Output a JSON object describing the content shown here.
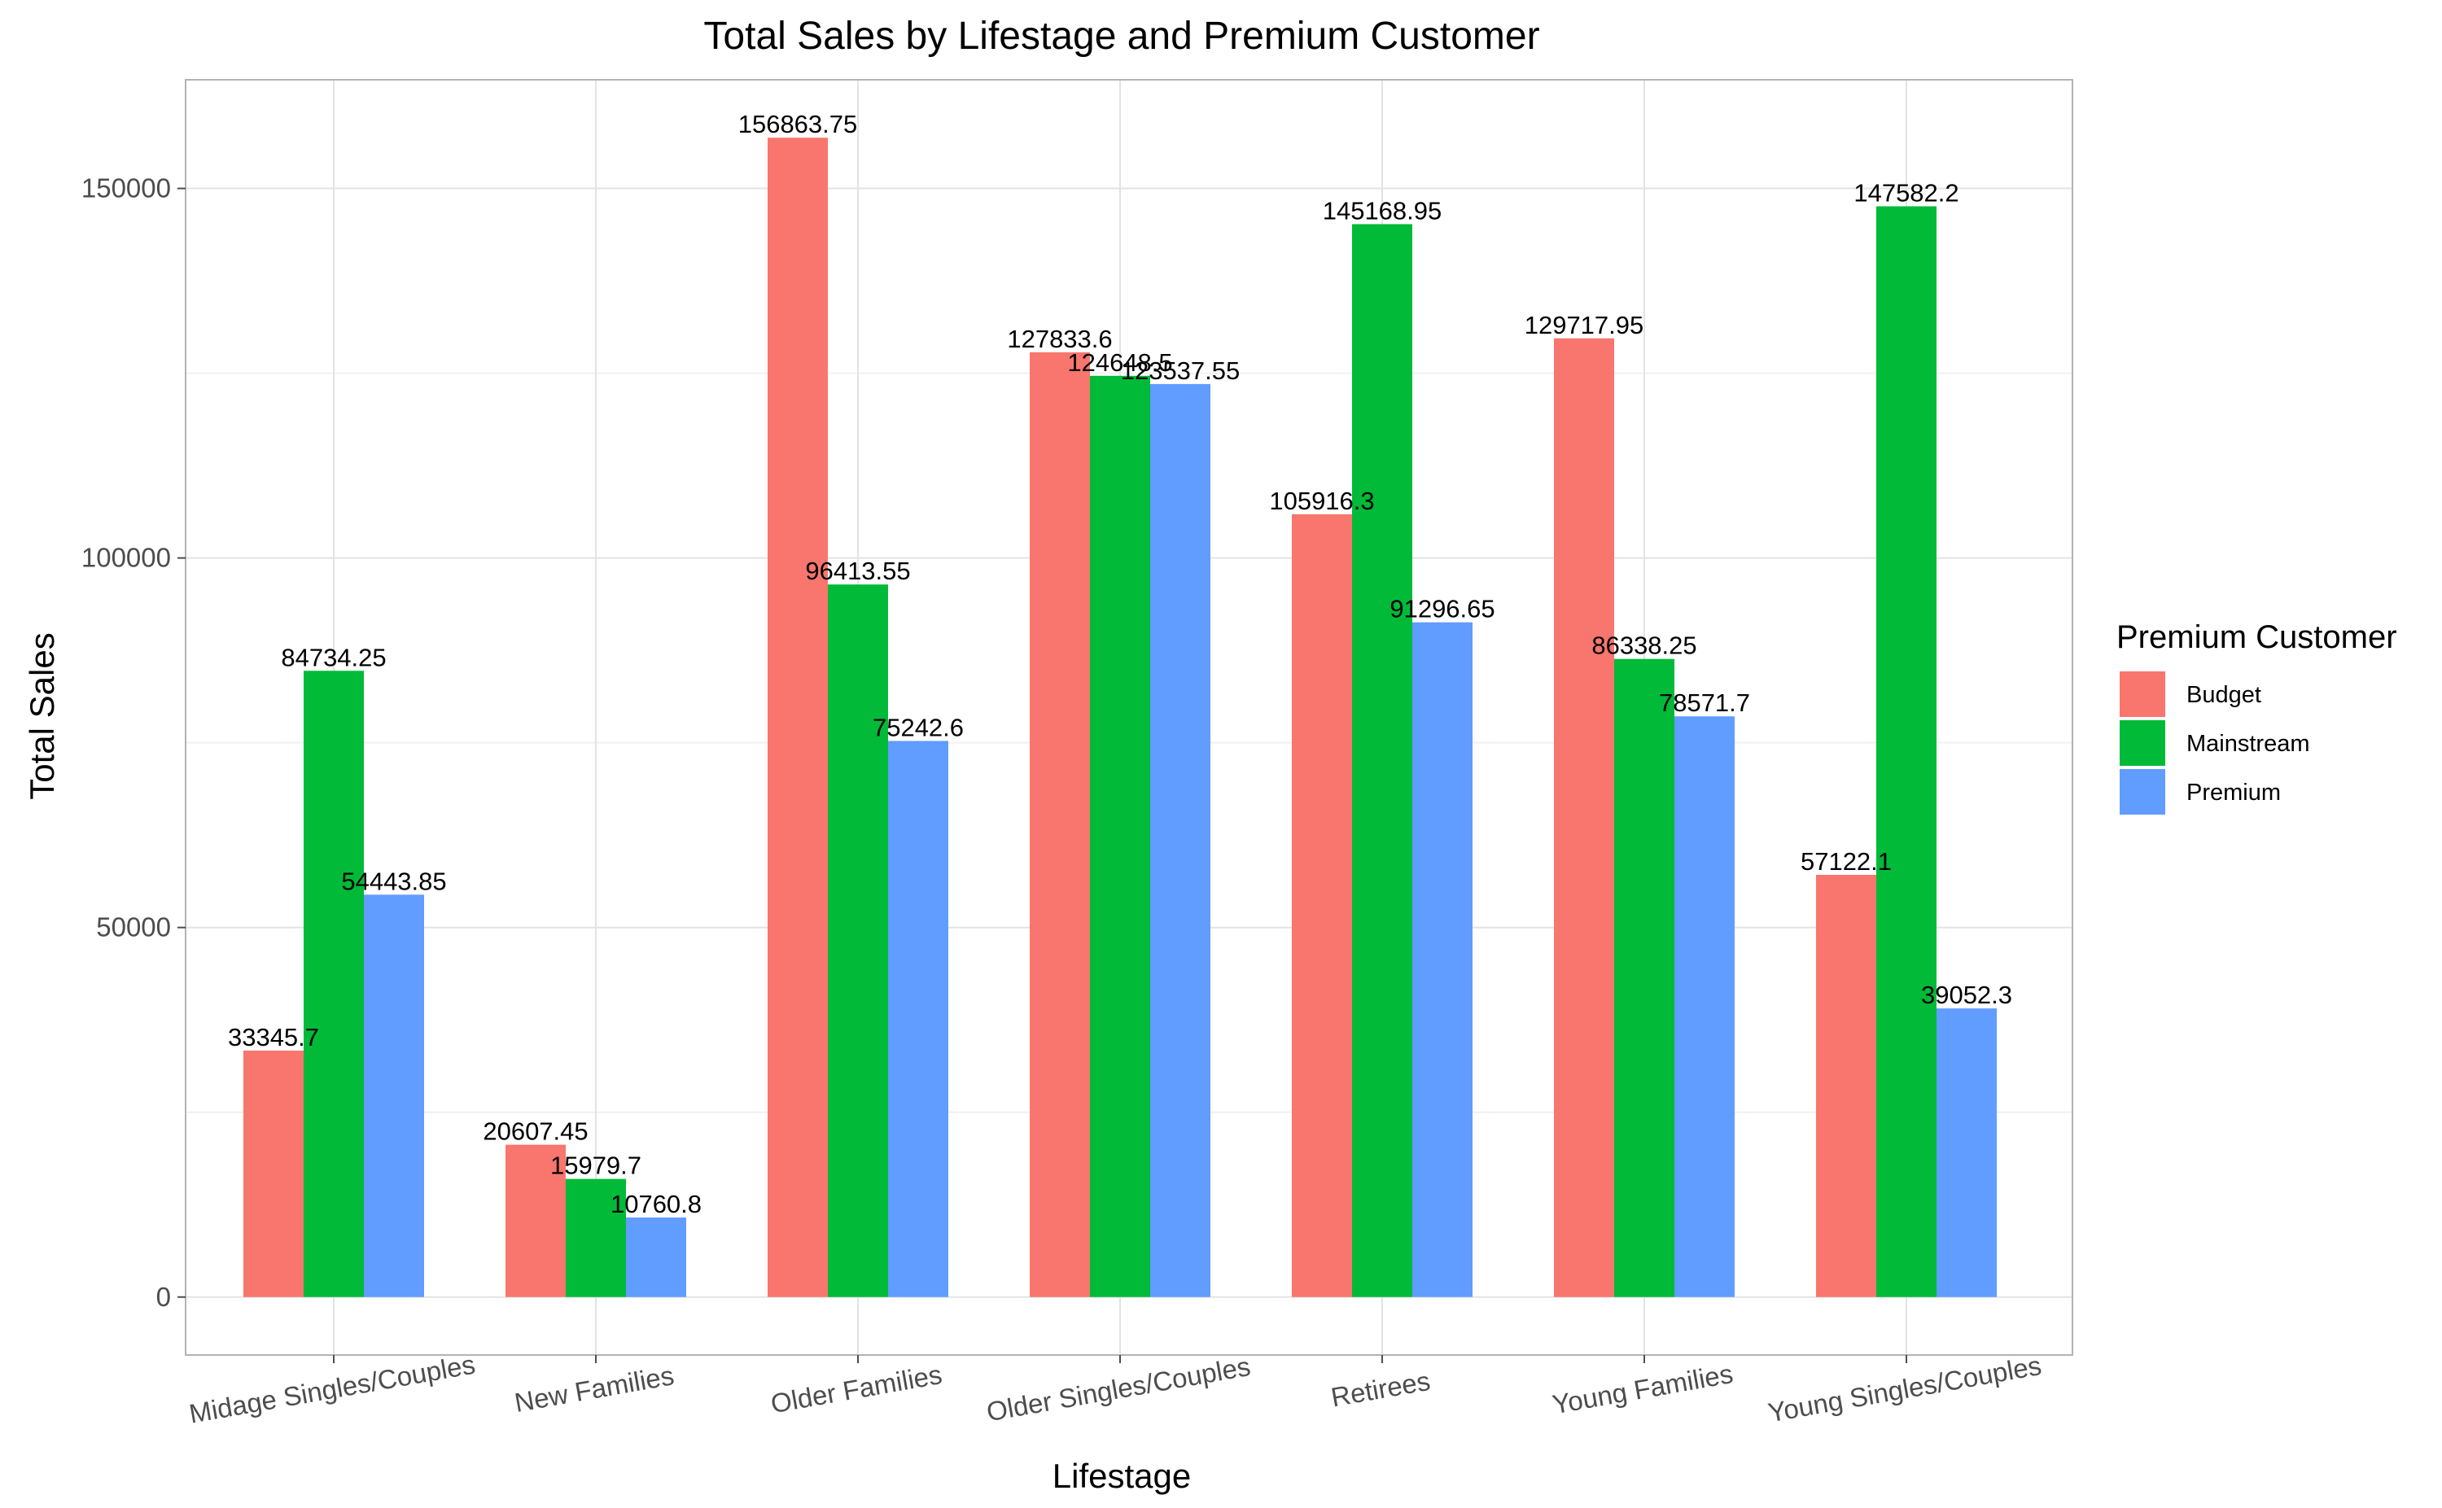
{
  "chart_data": {
    "type": "bar",
    "title": "Total Sales by Lifestage and Premium Customer",
    "xlabel": "Lifestage",
    "ylabel": "Total Sales",
    "categories": [
      "Midage Singles/Couples",
      "New Families",
      "Older Families",
      "Older Singles/Couples",
      "Retirees",
      "Young Families",
      "Young Singles/Couples"
    ],
    "series": [
      {
        "name": "Budget",
        "color": "#F8766D",
        "values": [
          33345.7,
          20607.45,
          156863.75,
          127833.6,
          105916.3,
          129717.95,
          57122.1
        ],
        "labels": [
          "33345.7",
          "20607.45",
          "156863.75",
          "127833.6",
          "105916.3",
          "129717.95",
          "57122.1"
        ]
      },
      {
        "name": "Mainstream",
        "color": "#00BA38",
        "values": [
          84734.25,
          15979.7,
          96413.55,
          124648.5,
          145168.95,
          86338.25,
          147582.2
        ],
        "labels": [
          "84734.25",
          "15979.7",
          "96413.55",
          "124648.5",
          "145168.95",
          "86338.25",
          "147582.2"
        ]
      },
      {
        "name": "Premium",
        "color": "#619CFF",
        "values": [
          54443.85,
          10760.8,
          75242.6,
          123537.55,
          91296.65,
          78571.7,
          39052.3
        ],
        "labels": [
          "54443.85",
          "10760.8",
          "75242.6",
          "123537.55",
          "91296.65",
          "78571.7",
          "39052.3"
        ]
      }
    ],
    "yticks": [
      0,
      50000,
      100000,
      150000
    ],
    "ytick_labels": [
      "0",
      "50000",
      "100000",
      "150000"
    ],
    "ylim": [
      -7843,
      164707
    ],
    "grid": true,
    "legend": {
      "title": "Premium Customer",
      "position": "right"
    }
  }
}
